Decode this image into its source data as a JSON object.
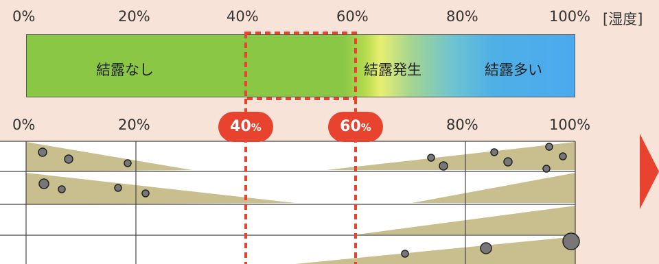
{
  "top_axis": {
    "ticks": [
      "0%",
      "20%",
      "40%",
      "60%",
      "80%",
      "100%"
    ],
    "unit": "[湿度]"
  },
  "bottom_axis": {
    "ticks": [
      "0%",
      "20%",
      "80%",
      "100%"
    ]
  },
  "bands": {
    "none": "結露なし",
    "occurs": "結露発生",
    "many": "結露多い"
  },
  "badges": {
    "low": "40",
    "high": "60",
    "pct": "%"
  },
  "colors": {
    "accent": "#e8432e",
    "dry": "#8ac745",
    "wet": "#4aaaee",
    "wedge": "#c9bf8e"
  }
}
